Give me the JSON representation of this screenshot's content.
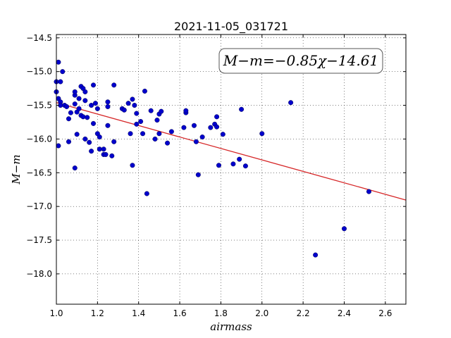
{
  "chart_data": {
    "type": "scatter",
    "title": "2021-11-05_031721",
    "xlabel": "airmass",
    "ylabel": "M−m",
    "annotation": "M−m=−0.85χ−14.61",
    "xlim": [
      1.0,
      2.7
    ],
    "ylim": [
      -18.45,
      -14.45
    ],
    "y_inverted": false,
    "grid": true,
    "x_ticks": [
      "1.0",
      "1.2",
      "1.4",
      "1.6",
      "1.8",
      "2.0",
      "2.2",
      "2.4",
      "2.6"
    ],
    "y_ticks": [
      "−14.5",
      "−15.0",
      "−15.5",
      "−16.0",
      "−16.5",
      "−17.0",
      "−17.5",
      "−18.0"
    ],
    "fit_line": {
      "slope": -0.85,
      "intercept": -14.61,
      "color": "#d62728"
    },
    "point_color": "#0000cc",
    "points": [
      [
        1.0,
        -15.15
      ],
      [
        1.0,
        -15.3
      ],
      [
        1.01,
        -15.4
      ],
      [
        1.01,
        -16.1
      ],
      [
        1.01,
        -14.86
      ],
      [
        1.02,
        -15.15
      ],
      [
        1.02,
        -15.45
      ],
      [
        1.03,
        -15.0
      ],
      [
        1.02,
        -15.5
      ],
      [
        1.04,
        -15.5
      ],
      [
        1.05,
        -15.52
      ],
      [
        1.06,
        -16.04
      ],
      [
        1.06,
        -15.7
      ],
      [
        1.07,
        -15.61
      ],
      [
        1.09,
        -15.48
      ],
      [
        1.09,
        -15.35
      ],
      [
        1.09,
        -15.3
      ],
      [
        1.09,
        -16.43
      ],
      [
        1.1,
        -15.6
      ],
      [
        1.11,
        -15.55
      ],
      [
        1.1,
        -15.93
      ],
      [
        1.11,
        -15.4
      ],
      [
        1.12,
        -15.65
      ],
      [
        1.12,
        -15.22
      ],
      [
        1.13,
        -15.25
      ],
      [
        1.13,
        -15.67
      ],
      [
        1.14,
        -15.3
      ],
      [
        1.14,
        -15.43
      ],
      [
        1.14,
        -16.0
      ],
      [
        1.15,
        -15.68
      ],
      [
        1.16,
        -16.05
      ],
      [
        1.17,
        -15.5
      ],
      [
        1.17,
        -16.18
      ],
      [
        1.18,
        -15.77
      ],
      [
        1.18,
        -15.2
      ],
      [
        1.19,
        -15.47
      ],
      [
        1.2,
        -15.92
      ],
      [
        1.2,
        -15.55
      ],
      [
        1.21,
        -16.15
      ],
      [
        1.21,
        -15.97
      ],
      [
        1.23,
        -16.15
      ],
      [
        1.23,
        -16.23
      ],
      [
        1.24,
        -16.23
      ],
      [
        1.25,
        -15.45
      ],
      [
        1.25,
        -15.52
      ],
      [
        1.25,
        -15.8
      ],
      [
        1.27,
        -16.25
      ],
      [
        1.28,
        -16.04
      ],
      [
        1.28,
        -15.2
      ],
      [
        1.32,
        -15.55
      ],
      [
        1.33,
        -15.57
      ],
      [
        1.35,
        -15.47
      ],
      [
        1.36,
        -15.92
      ],
      [
        1.37,
        -15.41
      ],
      [
        1.37,
        -16.39
      ],
      [
        1.38,
        -15.5
      ],
      [
        1.39,
        -15.78
      ],
      [
        1.39,
        -15.62
      ],
      [
        1.41,
        -15.74
      ],
      [
        1.42,
        -15.92
      ],
      [
        1.43,
        -15.29
      ],
      [
        1.44,
        -16.81
      ],
      [
        1.46,
        -15.58
      ],
      [
        1.48,
        -16.0
      ],
      [
        1.49,
        -15.72
      ],
      [
        1.5,
        -15.92
      ],
      [
        1.5,
        -15.63
      ],
      [
        1.51,
        -15.59
      ],
      [
        1.54,
        -16.06
      ],
      [
        1.56,
        -15.89
      ],
      [
        1.62,
        -15.83
      ],
      [
        1.63,
        -15.61
      ],
      [
        1.63,
        -15.58
      ],
      [
        1.67,
        -15.8
      ],
      [
        1.68,
        -16.04
      ],
      [
        1.69,
        -16.53
      ],
      [
        1.71,
        -15.97
      ],
      [
        1.75,
        -15.83
      ],
      [
        1.77,
        -15.78
      ],
      [
        1.78,
        -15.82
      ],
      [
        1.78,
        -15.67
      ],
      [
        1.79,
        -16.39
      ],
      [
        1.81,
        -15.93
      ],
      [
        1.86,
        -16.37
      ],
      [
        1.89,
        -16.3
      ],
      [
        1.9,
        -15.56
      ],
      [
        1.92,
        -16.4
      ],
      [
        2.0,
        -15.92
      ],
      [
        2.14,
        -15.46
      ],
      [
        2.26,
        -17.72
      ],
      [
        2.4,
        -17.33
      ],
      [
        2.52,
        -16.78
      ]
    ]
  }
}
